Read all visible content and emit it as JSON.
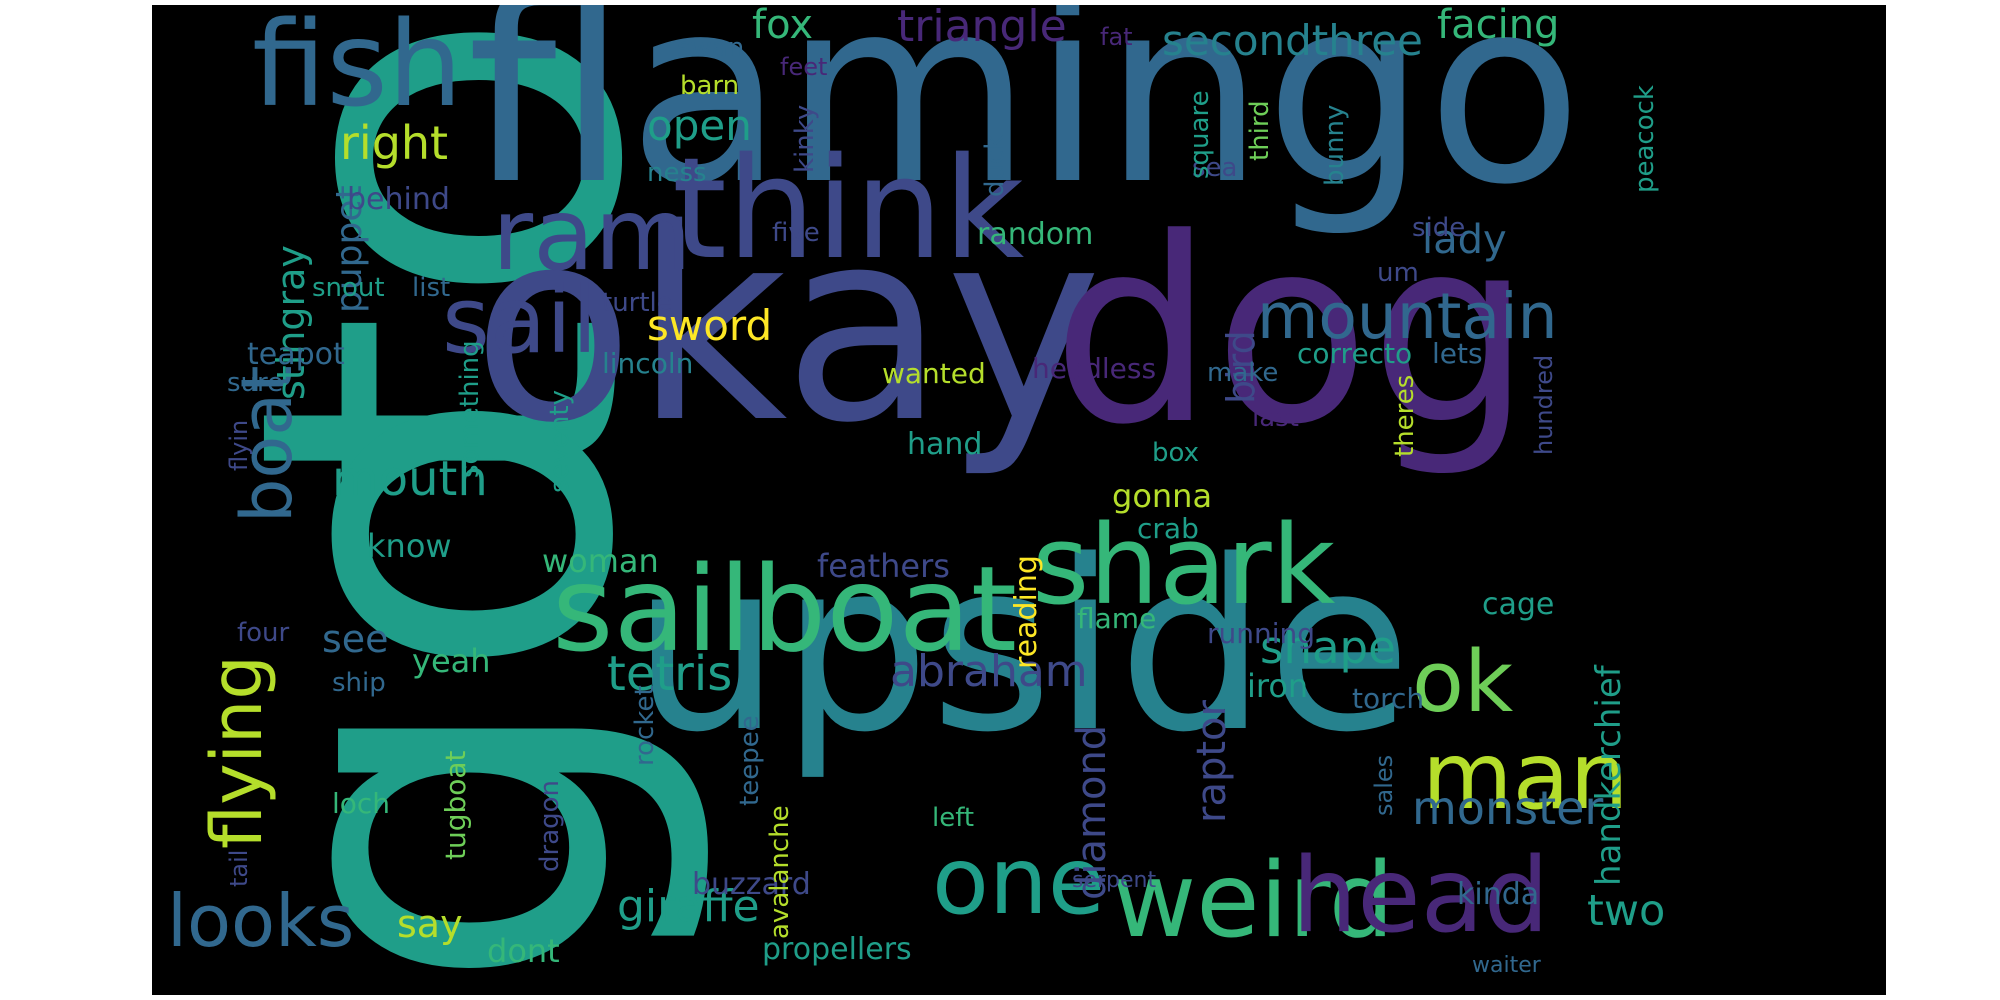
{
  "palette": {
    "yellow": "#fde725",
    "lime": "#b5de2b",
    "green": "#6ece58",
    "seagreen": "#35b779",
    "teal": "#1f9e89",
    "tealblue": "#26828e",
    "blue": "#31688e",
    "slate": "#3e4989",
    "indigo": "#482878",
    "purple": "#440154"
  },
  "words": [
    {
      "text": "to",
      "color": "teal"
    },
    {
      "text": "go",
      "color": "teal"
    },
    {
      "text": "flamingo",
      "color": "blue"
    },
    {
      "text": "okay",
      "color": "slate"
    },
    {
      "text": "dog",
      "color": "indigo"
    },
    {
      "text": "upside",
      "color": "tealblue"
    },
    {
      "text": "think",
      "color": "slate"
    },
    {
      "text": "sailboat",
      "color": "seagreen"
    },
    {
      "text": "fish",
      "color": "blue"
    },
    {
      "text": "ram",
      "color": "slate"
    },
    {
      "text": "sail",
      "color": "slate"
    },
    {
      "text": "shark",
      "color": "seagreen"
    },
    {
      "text": "weird",
      "color": "seagreen"
    },
    {
      "text": "head",
      "color": "indigo"
    },
    {
      "text": "man",
      "color": "lime"
    },
    {
      "text": "one",
      "color": "teal"
    },
    {
      "text": "ok",
      "color": "green"
    },
    {
      "text": "flying",
      "color": "lime"
    },
    {
      "text": "boat",
      "color": "blue"
    },
    {
      "text": "mountain",
      "color": "blue"
    },
    {
      "text": "looks",
      "color": "blue"
    },
    {
      "text": "mouth",
      "color": "teal"
    },
    {
      "text": "tetris",
      "color": "teal"
    },
    {
      "text": "abraham",
      "color": "slate"
    },
    {
      "text": "giraffe",
      "color": "teal"
    },
    {
      "text": "shape",
      "color": "teal"
    },
    {
      "text": "monster",
      "color": "blue"
    },
    {
      "text": "two",
      "color": "teal"
    },
    {
      "text": "fox",
      "color": "seagreen"
    },
    {
      "text": "triangle",
      "color": "indigo"
    },
    {
      "text": "secondthree",
      "color": "tealblue"
    },
    {
      "text": "facing",
      "color": "seagreen"
    },
    {
      "text": "right",
      "color": "lime"
    },
    {
      "text": "open",
      "color": "teal"
    },
    {
      "text": "sword",
      "color": "yellow"
    },
    {
      "text": "lady",
      "color": "blue"
    },
    {
      "text": "stingray",
      "color": "teal"
    },
    {
      "text": "puppet",
      "color": "blue"
    },
    {
      "text": "handkerchief",
      "color": "teal"
    },
    {
      "text": "raptor",
      "color": "slate"
    },
    {
      "text": "diamond",
      "color": "slate"
    },
    {
      "text": "bird",
      "color": "slate"
    },
    {
      "text": "see",
      "color": "blue"
    },
    {
      "text": "say",
      "color": "lime"
    },
    {
      "text": "yeah",
      "color": "seagreen"
    },
    {
      "text": "know",
      "color": "teal"
    },
    {
      "text": "dont",
      "color": "seagreen"
    },
    {
      "text": "propellers",
      "color": "teal"
    },
    {
      "text": "buzzard",
      "color": "slate"
    },
    {
      "text": "woman",
      "color": "seagreen"
    },
    {
      "text": "feathers",
      "color": "slate"
    },
    {
      "text": "reading",
      "color": "yellow"
    },
    {
      "text": "gonna",
      "color": "lime"
    },
    {
      "text": "crab",
      "color": "teal"
    },
    {
      "text": "iron",
      "color": "teal"
    },
    {
      "text": "flame",
      "color": "seagreen"
    },
    {
      "text": "running",
      "color": "slate"
    },
    {
      "text": "cage",
      "color": "teal"
    },
    {
      "text": "torch",
      "color": "blue"
    },
    {
      "text": "kinda",
      "color": "blue"
    },
    {
      "text": "correcto",
      "color": "teal"
    },
    {
      "text": "lets",
      "color": "blue"
    },
    {
      "text": "random",
      "color": "seagreen"
    },
    {
      "text": "behind",
      "color": "slate"
    },
    {
      "text": "snout",
      "color": "teal"
    },
    {
      "text": "list",
      "color": "blue"
    },
    {
      "text": "turtle",
      "color": "slate"
    },
    {
      "text": "teapot",
      "color": "blue"
    },
    {
      "text": "lincoln",
      "color": "tealblue"
    },
    {
      "text": "wanted",
      "color": "lime"
    },
    {
      "text": "headless",
      "color": "indigo"
    },
    {
      "text": "make",
      "color": "blue"
    },
    {
      "text": "hand",
      "color": "teal"
    },
    {
      "text": "box",
      "color": "teal"
    },
    {
      "text": "last",
      "color": "indigo"
    },
    {
      "text": "swan",
      "color": "blue"
    },
    {
      "text": "barn",
      "color": "lime"
    },
    {
      "text": "feet",
      "color": "indigo"
    },
    {
      "text": "fat",
      "color": "indigo"
    },
    {
      "text": "ness",
      "color": "tealblue"
    },
    {
      "text": "five",
      "color": "slate"
    },
    {
      "text": "sea",
      "color": "slate"
    },
    {
      "text": "um",
      "color": "slate"
    },
    {
      "text": "side",
      "color": "slate"
    },
    {
      "text": "sure",
      "color": "blue"
    },
    {
      "text": "four",
      "color": "slate"
    },
    {
      "text": "ship",
      "color": "blue"
    },
    {
      "text": "loch",
      "color": "seagreen"
    },
    {
      "text": "left",
      "color": "seagreen"
    },
    {
      "text": "serpent",
      "color": "slate"
    },
    {
      "text": "waiter",
      "color": "blue"
    },
    {
      "text": "kinky",
      "color": "slate"
    },
    {
      "text": "duck",
      "color": "blue"
    },
    {
      "text": "square",
      "color": "teal"
    },
    {
      "text": "third",
      "color": "green"
    },
    {
      "text": "bunny",
      "color": "tealblue"
    },
    {
      "text": "peacock",
      "color": "teal"
    },
    {
      "text": "hundred",
      "color": "slate"
    },
    {
      "text": "theres",
      "color": "lime"
    },
    {
      "text": "something",
      "color": "teal"
    },
    {
      "text": "seventy",
      "color": "teal"
    },
    {
      "text": "flyin",
      "color": "slate"
    },
    {
      "text": "tail",
      "color": "slate"
    },
    {
      "text": "tugboat",
      "color": "green"
    },
    {
      "text": "dragon",
      "color": "slate"
    },
    {
      "text": "rocket",
      "color": "blue"
    },
    {
      "text": "teepee",
      "color": "blue"
    },
    {
      "text": "avalanche",
      "color": "lime"
    },
    {
      "text": "sales",
      "color": "blue"
    }
  ]
}
